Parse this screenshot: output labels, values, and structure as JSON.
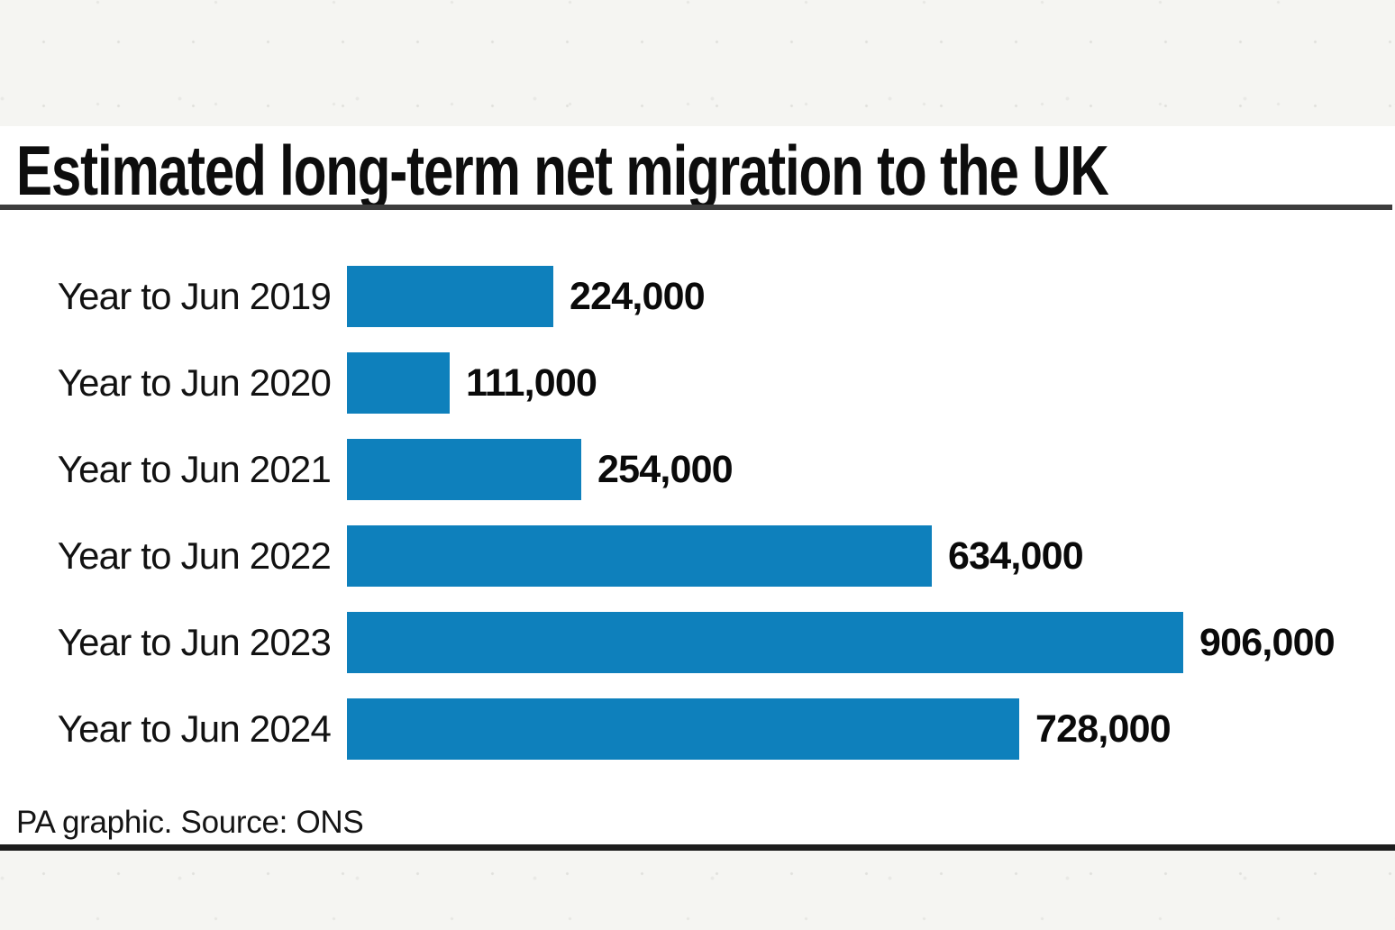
{
  "chart": {
    "title": "Estimated long-term net migration to the UK",
    "source": "PA graphic. Source: ONS",
    "bar_color": "#0e80bc",
    "title_rule_color": "#3d3d3d",
    "bottom_rule_color": "#1d1d1d"
  },
  "chart_data": {
    "type": "bar",
    "orientation": "horizontal",
    "title": "Estimated long-term net migration to the UK",
    "xlabel": "",
    "ylabel": "",
    "xlim": [
      0,
      906000
    ],
    "grid": false,
    "legend": false,
    "categories": [
      "Year to Jun 2019",
      "Year to Jun 2020",
      "Year to Jun 2021",
      "Year to Jun 2022",
      "Year to Jun 2023",
      "Year to Jun 2024"
    ],
    "values": [
      224000,
      111000,
      254000,
      634000,
      906000,
      728000
    ],
    "value_labels": [
      "224,000",
      "111,000",
      "254,000",
      "634,000",
      "906,000",
      "728,000"
    ],
    "source_note": "PA graphic. Source: ONS"
  }
}
